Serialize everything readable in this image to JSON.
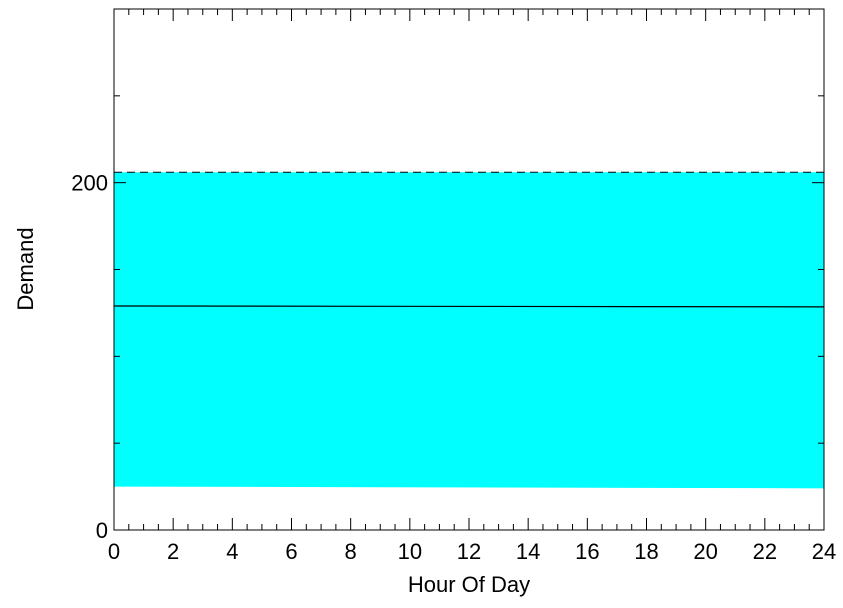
{
  "chart_data": {
    "type": "area",
    "title": "",
    "xlabel": "Hour Of Day",
    "ylabel": "Demand",
    "xlim": [
      0,
      24
    ],
    "ylim": [
      0,
      300
    ],
    "x_ticks": [
      0,
      2,
      4,
      6,
      8,
      10,
      12,
      14,
      16,
      18,
      20,
      22,
      24
    ],
    "y_ticks": [
      0,
      200
    ],
    "x_minor_step": 0.5,
    "y_minor_ticks": [
      50,
      100,
      150,
      250
    ],
    "band": {
      "x": [
        0,
        24
      ],
      "lower": [
        25,
        24
      ],
      "upper": [
        206,
        206
      ]
    },
    "upper_dashed": {
      "x": [
        0,
        24
      ],
      "y": [
        206,
        206
      ]
    },
    "mean_line": {
      "x": [
        0,
        24
      ],
      "y": [
        129,
        128.5
      ]
    },
    "grid": false,
    "colors": {
      "band": "#00ffff",
      "lines": "#000000"
    }
  }
}
